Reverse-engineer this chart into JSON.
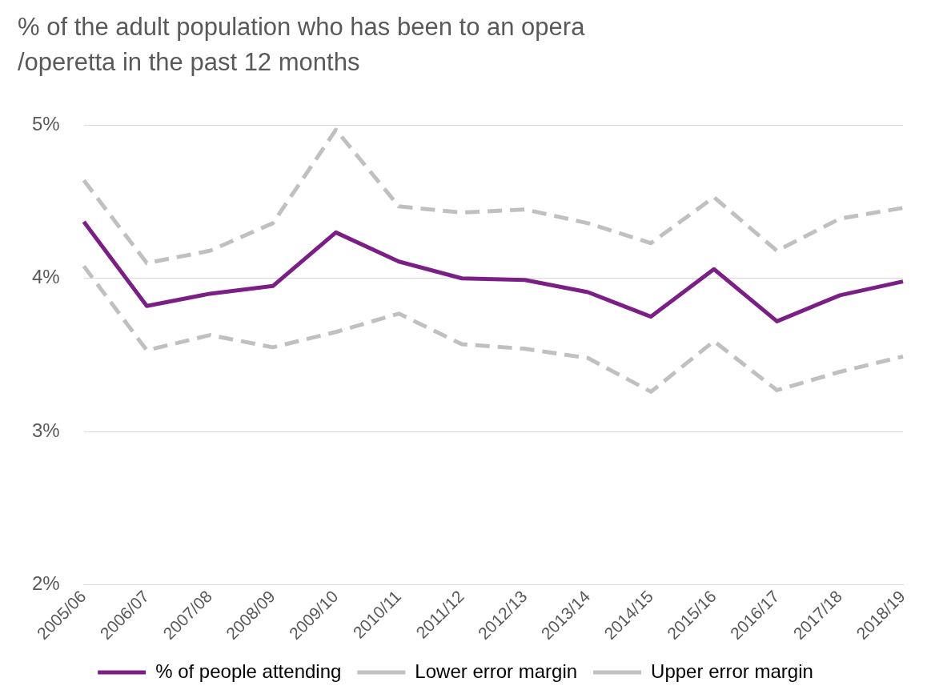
{
  "chart_data": {
    "type": "line",
    "title": "% of the adult population who has been to an opera /operetta in the past 12 months",
    "categories": [
      "2005/06",
      "2006/07",
      "2007/08",
      "2008/09",
      "2009/10",
      "2010/11",
      "2011/12",
      "2012/13",
      "2013/14",
      "2014/15",
      "2015/16",
      "2016/17",
      "2017/18",
      "2018/19"
    ],
    "series": [
      {
        "name": "% of people attending",
        "color": "#7b1f86",
        "line_style": "solid",
        "values": [
          4.37,
          3.82,
          3.9,
          3.95,
          4.3,
          4.11,
          4.0,
          3.99,
          3.91,
          3.75,
          4.06,
          3.72,
          3.89,
          3.98
        ]
      },
      {
        "name": "Lower error margin",
        "color": "#c0c0c0",
        "line_style": "dashed",
        "values": [
          4.08,
          3.53,
          3.63,
          3.55,
          3.65,
          3.77,
          3.57,
          3.54,
          3.48,
          3.26,
          3.59,
          3.27,
          3.39,
          3.49
        ]
      },
      {
        "name": "Upper error margin",
        "color": "#c0c0c0",
        "line_style": "dashed",
        "values": [
          4.64,
          4.1,
          4.18,
          4.36,
          4.97,
          4.47,
          4.43,
          4.45,
          4.36,
          4.23,
          4.53,
          4.18,
          4.39,
          4.46
        ]
      }
    ],
    "ylim": [
      2,
      5
    ],
    "yticks": [
      {
        "value": 2,
        "label": "2%"
      },
      {
        "value": 3,
        "label": "3%"
      },
      {
        "value": 4,
        "label": "4%"
      },
      {
        "value": 5,
        "label": "5%"
      }
    ],
    "grid": "y",
    "legend": "bottom",
    "marker": "none"
  }
}
